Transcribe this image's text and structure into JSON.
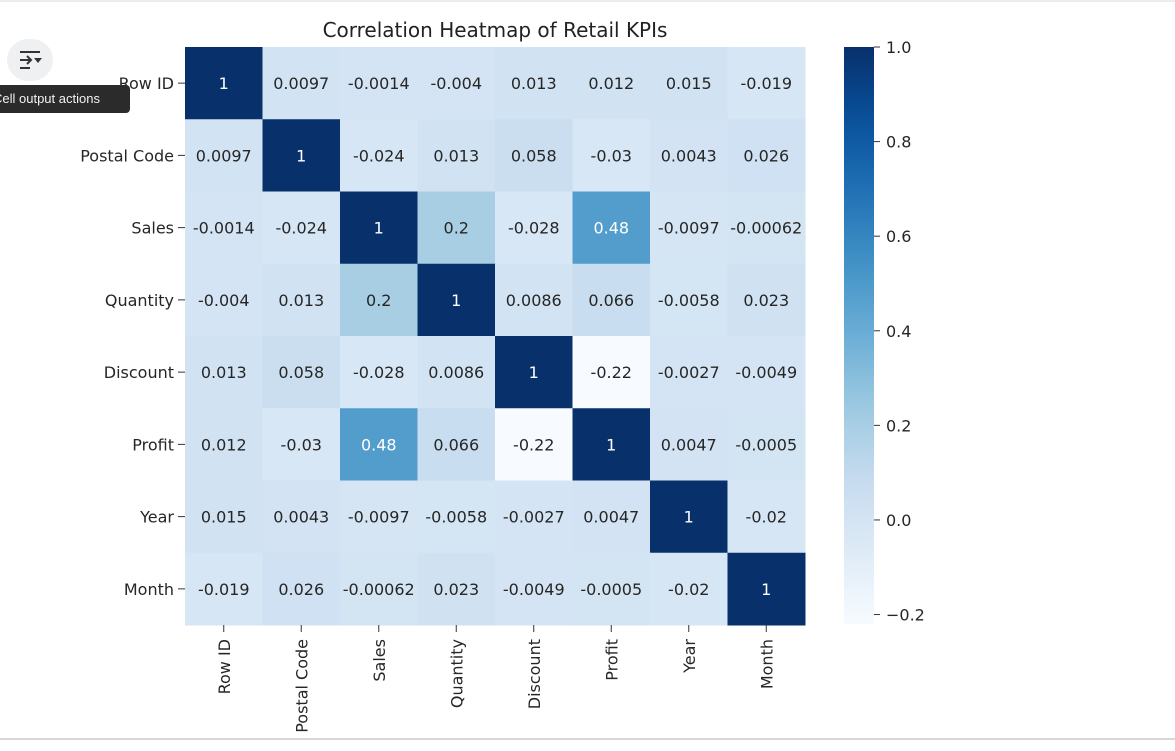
{
  "output_actions_tooltip": "Cell output actions",
  "output_actions_icon": "output-actions-icon",
  "chart_data": {
    "type": "heatmap",
    "title": "Correlation Heatmap of Retail KPIs",
    "colormap": "Blues",
    "rows": [
      "Row ID",
      "Postal Code",
      "Sales",
      "Quantity",
      "Discount",
      "Profit",
      "Year",
      "Month"
    ],
    "columns": [
      "Row ID",
      "Postal Code",
      "Sales",
      "Quantity",
      "Discount",
      "Profit",
      "Year",
      "Month"
    ],
    "values": [
      [
        1,
        0.0097,
        -0.0014,
        -0.004,
        0.013,
        0.012,
        0.015,
        -0.019
      ],
      [
        0.0097,
        1,
        -0.024,
        0.013,
        0.058,
        -0.03,
        0.0043,
        0.026
      ],
      [
        -0.0014,
        -0.024,
        1,
        0.2,
        -0.028,
        0.48,
        -0.0097,
        -0.00062
      ],
      [
        -0.004,
        0.013,
        0.2,
        1,
        0.0086,
        0.066,
        -0.0058,
        0.023
      ],
      [
        0.013,
        0.058,
        -0.028,
        0.0086,
        1,
        -0.22,
        -0.0027,
        -0.0049
      ],
      [
        0.012,
        -0.03,
        0.48,
        0.066,
        -0.22,
        1,
        0.0047,
        -0.0005
      ],
      [
        0.015,
        0.0043,
        -0.0097,
        -0.0058,
        -0.0027,
        0.0047,
        1,
        -0.02
      ],
      [
        -0.019,
        0.026,
        -0.00062,
        0.023,
        -0.0049,
        -0.0005,
        -0.02,
        1
      ]
    ],
    "annotations": [
      [
        "1",
        "0.0097",
        "-0.0014",
        "-0.004",
        "0.013",
        "0.012",
        "0.015",
        "-0.019"
      ],
      [
        "0.0097",
        "1",
        "-0.024",
        "0.013",
        "0.058",
        "-0.03",
        "0.0043",
        "0.026"
      ],
      [
        "-0.0014",
        "-0.024",
        "1",
        "0.2",
        "-0.028",
        "0.48",
        "-0.0097",
        "-0.00062"
      ],
      [
        "-0.004",
        "0.013",
        "0.2",
        "1",
        "0.0086",
        "0.066",
        "-0.0058",
        "0.023"
      ],
      [
        "0.013",
        "0.058",
        "-0.028",
        "0.0086",
        "1",
        "-0.22",
        "-0.0027",
        "-0.0049"
      ],
      [
        "0.012",
        "-0.03",
        "0.48",
        "0.066",
        "-0.22",
        "1",
        "0.0047",
        "-0.0005"
      ],
      [
        "0.015",
        "0.0043",
        "-0.0097",
        "-0.0058",
        "-0.0027",
        "0.0047",
        "1",
        "-0.02"
      ],
      [
        "-0.019",
        "0.026",
        "-0.00062",
        "0.023",
        "-0.0049",
        "-0.0005",
        "-0.02",
        "1"
      ]
    ],
    "colorbar": {
      "range": [
        -0.22,
        1
      ],
      "ticks": [
        1.0,
        0.8,
        0.6,
        0.4,
        0.2,
        0.0,
        -0.2
      ],
      "tick_labels": [
        "1.0",
        "0.8",
        "0.6",
        "0.4",
        "0.2",
        "0.0",
        "−0.2"
      ]
    }
  }
}
